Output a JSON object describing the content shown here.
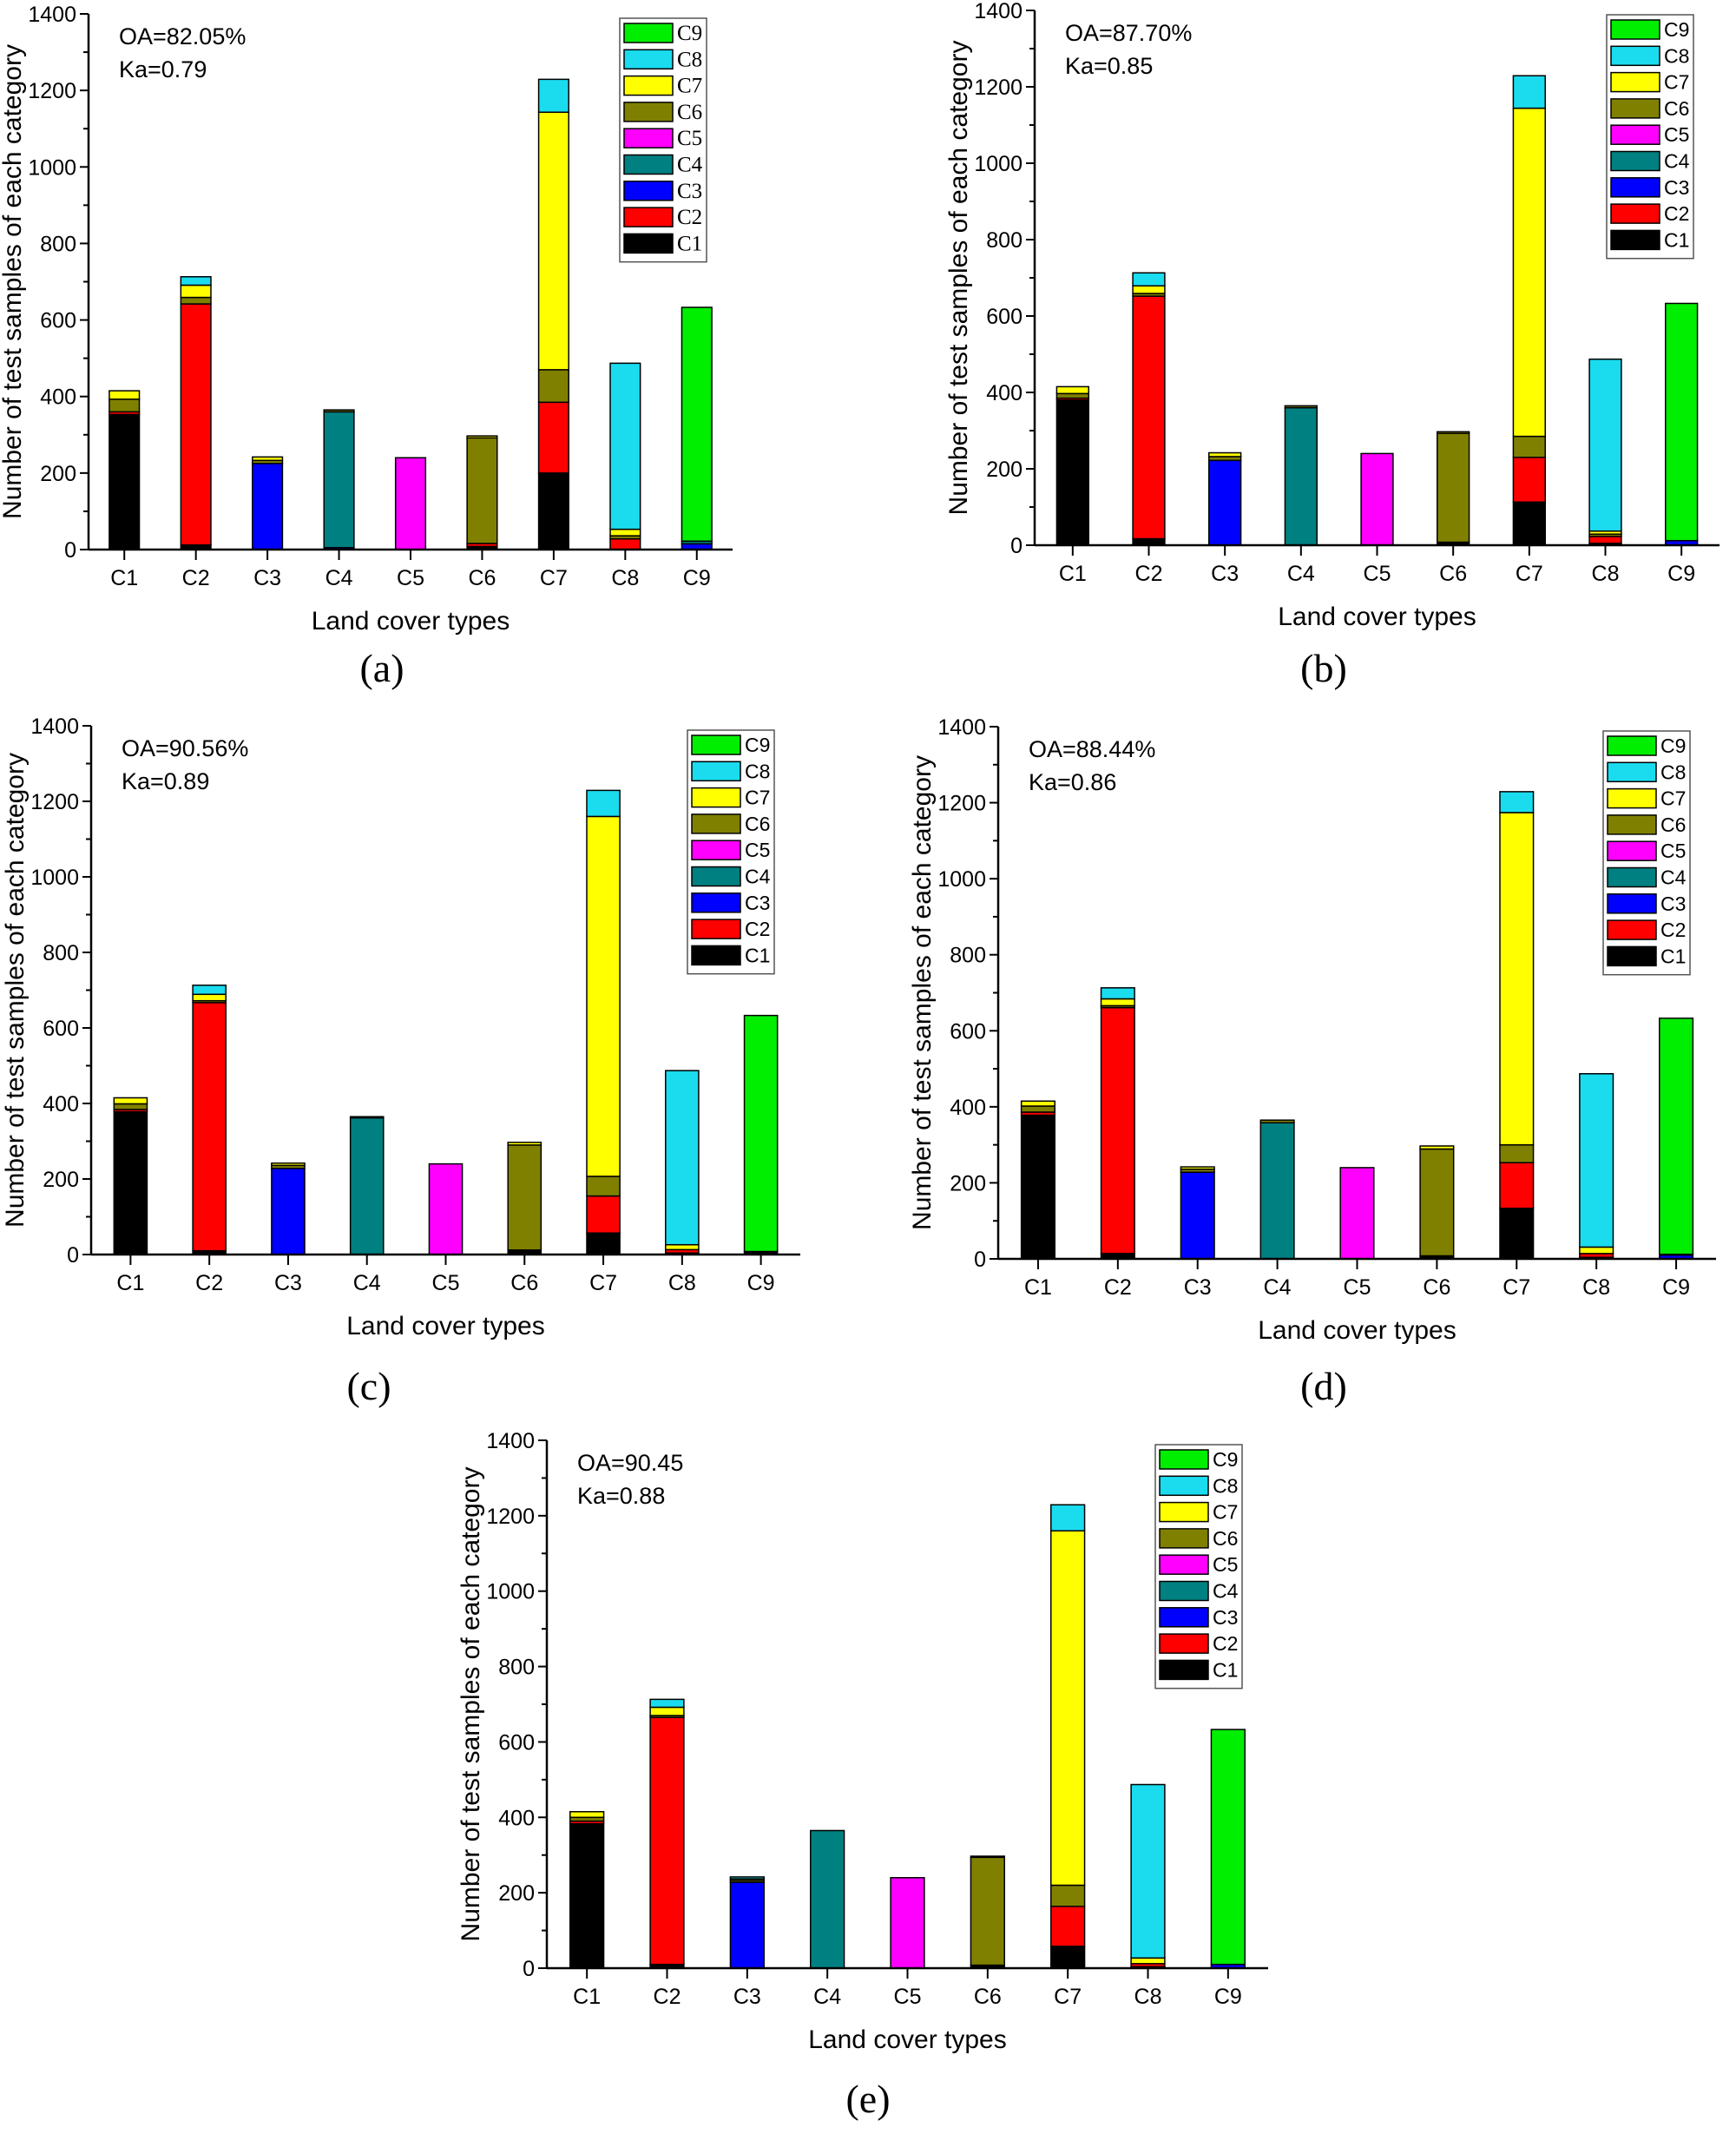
{
  "colors": {
    "C1": "#000000",
    "C2": "#ff0000",
    "C3": "#0000ff",
    "C4": "#008080",
    "C5": "#ff00ff",
    "C6": "#808000",
    "C7": "#ffff00",
    "C8": "#1adcee",
    "C9": "#00ee00"
  },
  "chart_data": [
    {
      "panel": "(a)",
      "type": "bar",
      "stacked": true,
      "annotations": [
        "OA=82.05%",
        "Ka=0.79"
      ],
      "xlabel": "Land cover types",
      "ylabel": "Number of test samples of each category",
      "ylim": [
        0,
        1400
      ],
      "yticks": [
        "0",
        "200",
        "400",
        "600",
        "800",
        "1000",
        "1200",
        "1400"
      ],
      "categories": [
        "C1",
        "C2",
        "C3",
        "C4",
        "C5",
        "C6",
        "C7",
        "C8",
        "C9"
      ],
      "legend": "top-right",
      "series": [
        {
          "name": "C1",
          "values": [
            353,
            12,
            0,
            0,
            0,
            8,
            200,
            0,
            0
          ]
        },
        {
          "name": "C2",
          "values": [
            7,
            630,
            0,
            0,
            0,
            8,
            185,
            28,
            0
          ]
        },
        {
          "name": "C3",
          "values": [
            0,
            0,
            225,
            5,
            0,
            0,
            0,
            0,
            15
          ]
        },
        {
          "name": "C4",
          "values": [
            0,
            0,
            0,
            355,
            0,
            0,
            0,
            0,
            7
          ]
        },
        {
          "name": "C5",
          "values": [
            0,
            0,
            0,
            0,
            240,
            0,
            0,
            0,
            0
          ]
        },
        {
          "name": "C6",
          "values": [
            33,
            17,
            8,
            5,
            0,
            276,
            85,
            8,
            0
          ]
        },
        {
          "name": "C7",
          "values": [
            22,
            32,
            9,
            0,
            0,
            5,
            673,
            17,
            0
          ]
        },
        {
          "name": "C8",
          "values": [
            0,
            22,
            0,
            0,
            0,
            0,
            86,
            434,
            0
          ]
        },
        {
          "name": "C9",
          "values": [
            0,
            0,
            0,
            0,
            0,
            0,
            0,
            0,
            611
          ]
        }
      ]
    },
    {
      "panel": "(b)",
      "type": "bar",
      "stacked": true,
      "annotations": [
        "OA=87.70%",
        "Ka=0.85"
      ],
      "xlabel": "Land cover types",
      "ylabel": "Number of test samples of each category",
      "ylim": [
        0,
        1400
      ],
      "yticks": [
        "0",
        "200",
        "400",
        "600",
        "800",
        "1000",
        "1200",
        "1400"
      ],
      "categories": [
        "C1",
        "C2",
        "C3",
        "C4",
        "C5",
        "C6",
        "C7",
        "C8",
        "C9"
      ],
      "legend": "top-right",
      "series": [
        {
          "name": "C1",
          "values": [
            380,
            17,
            0,
            0,
            0,
            8,
            113,
            5,
            0
          ]
        },
        {
          "name": "C2",
          "values": [
            5,
            635,
            0,
            0,
            0,
            0,
            117,
            18,
            0
          ]
        },
        {
          "name": "C3",
          "values": [
            0,
            0,
            222,
            0,
            0,
            0,
            0,
            0,
            12
          ]
        },
        {
          "name": "C4",
          "values": [
            0,
            0,
            0,
            360,
            0,
            0,
            0,
            0,
            0
          ]
        },
        {
          "name": "C5",
          "values": [
            0,
            0,
            0,
            0,
            240,
            0,
            0,
            0,
            0
          ]
        },
        {
          "name": "C6",
          "values": [
            12,
            7,
            10,
            5,
            0,
            285,
            55,
            6,
            0
          ]
        },
        {
          "name": "C7",
          "values": [
            18,
            20,
            10,
            0,
            0,
            4,
            859,
            8,
            0
          ]
        },
        {
          "name": "C8",
          "values": [
            0,
            34,
            0,
            0,
            0,
            0,
            85,
            450,
            0
          ]
        },
        {
          "name": "C9",
          "values": [
            0,
            0,
            0,
            0,
            0,
            0,
            0,
            0,
            621
          ]
        }
      ]
    },
    {
      "panel": "(c)",
      "type": "bar",
      "stacked": true,
      "annotations": [
        "OA=90.56%",
        "Ka=0.89"
      ],
      "xlabel": "Land cover types",
      "ylabel": "Number of test samples of each category",
      "ylim": [
        0,
        1400
      ],
      "yticks": [
        "0",
        "200",
        "400",
        "600",
        "800",
        "1000",
        "1200",
        "1400"
      ],
      "categories": [
        "C1",
        "C2",
        "C3",
        "C4",
        "C5",
        "C6",
        "C7",
        "C8",
        "C9"
      ],
      "legend": "top-right",
      "series": [
        {
          "name": "C1",
          "values": [
            378,
            10,
            0,
            0,
            0,
            12,
            57,
            4,
            8
          ]
        },
        {
          "name": "C2",
          "values": [
            6,
            657,
            0,
            0,
            0,
            0,
            98,
            9,
            0
          ]
        },
        {
          "name": "C3",
          "values": [
            0,
            0,
            228,
            0,
            0,
            0,
            0,
            0,
            0
          ]
        },
        {
          "name": "C4",
          "values": [
            0,
            0,
            0,
            362,
            0,
            0,
            0,
            0,
            0
          ]
        },
        {
          "name": "C5",
          "values": [
            0,
            0,
            0,
            0,
            240,
            0,
            0,
            0,
            0
          ]
        },
        {
          "name": "C6",
          "values": [
            15,
            5,
            8,
            3,
            0,
            278,
            52,
            0,
            0
          ]
        },
        {
          "name": "C7",
          "values": [
            16,
            17,
            6,
            0,
            0,
            7,
            953,
            13,
            0
          ]
        },
        {
          "name": "C8",
          "values": [
            0,
            24,
            0,
            0,
            0,
            0,
            69,
            461,
            0
          ]
        },
        {
          "name": "C9",
          "values": [
            0,
            0,
            0,
            0,
            0,
            0,
            0,
            0,
            625
          ]
        }
      ]
    },
    {
      "panel": "(d)",
      "type": "bar",
      "stacked": true,
      "annotations": [
        "OA=88.44%",
        "Ka=0.86"
      ],
      "xlabel": "Land cover types",
      "ylabel": "Number of test samples of each category",
      "ylim": [
        0,
        1400
      ],
      "yticks": [
        "0",
        "200",
        "400",
        "600",
        "800",
        "1000",
        "1200",
        "1400"
      ],
      "categories": [
        "C1",
        "C2",
        "C3",
        "C4",
        "C5",
        "C6",
        "C7",
        "C8",
        "C9"
      ],
      "legend": "top-right",
      "series": [
        {
          "name": "C1",
          "values": [
            378,
            14,
            0,
            0,
            0,
            8,
            133,
            4,
            0
          ]
        },
        {
          "name": "C2",
          "values": [
            8,
            647,
            0,
            0,
            0,
            0,
            120,
            10,
            0
          ]
        },
        {
          "name": "C3",
          "values": [
            0,
            0,
            228,
            0,
            0,
            0,
            0,
            0,
            10
          ]
        },
        {
          "name": "C4",
          "values": [
            0,
            0,
            0,
            358,
            0,
            0,
            0,
            0,
            2
          ]
        },
        {
          "name": "C5",
          "values": [
            0,
            0,
            0,
            0,
            240,
            0,
            0,
            0,
            0
          ]
        },
        {
          "name": "C6",
          "values": [
            16,
            5,
            8,
            7,
            0,
            281,
            47,
            0,
            0
          ]
        },
        {
          "name": "C7",
          "values": [
            13,
            18,
            6,
            0,
            0,
            8,
            874,
            17,
            0
          ]
        },
        {
          "name": "C8",
          "values": [
            0,
            29,
            0,
            0,
            0,
            0,
            55,
            456,
            0
          ]
        },
        {
          "name": "C9",
          "values": [
            0,
            0,
            0,
            0,
            0,
            0,
            0,
            0,
            621
          ]
        }
      ]
    },
    {
      "panel": "(e)",
      "type": "bar",
      "stacked": true,
      "annotations": [
        "OA=90.45",
        "Ka=0.88"
      ],
      "xlabel": "Land cover types",
      "ylabel": "Number of test samples of each category",
      "ylim": [
        0,
        1400
      ],
      "yticks": [
        "0",
        "200",
        "400",
        "600",
        "800",
        "1000",
        "1200",
        "1400"
      ],
      "categories": [
        "C1",
        "C2",
        "C3",
        "C4",
        "C5",
        "C6",
        "C7",
        "C8",
        "C9"
      ],
      "legend": "top-right",
      "series": [
        {
          "name": "C1",
          "values": [
            383,
            10,
            0,
            0,
            0,
            8,
            58,
            4,
            0
          ]
        },
        {
          "name": "C2",
          "values": [
            7,
            655,
            0,
            0,
            0,
            0,
            106,
            8,
            0
          ]
        },
        {
          "name": "C3",
          "values": [
            0,
            0,
            228,
            0,
            0,
            0,
            0,
            0,
            10
          ]
        },
        {
          "name": "C4",
          "values": [
            0,
            0,
            0,
            365,
            0,
            0,
            0,
            0,
            0
          ]
        },
        {
          "name": "C5",
          "values": [
            0,
            0,
            0,
            0,
            240,
            0,
            0,
            0,
            0
          ]
        },
        {
          "name": "C6",
          "values": [
            10,
            5,
            5,
            0,
            0,
            286,
            56,
            0,
            0
          ]
        },
        {
          "name": "C7",
          "values": [
            15,
            22,
            4,
            0,
            0,
            3,
            940,
            15,
            0
          ]
        },
        {
          "name": "C8",
          "values": [
            0,
            21,
            5,
            0,
            0,
            0,
            69,
            460,
            0
          ]
        },
        {
          "name": "C9",
          "values": [
            0,
            0,
            0,
            0,
            0,
            0,
            0,
            0,
            623
          ]
        }
      ]
    }
  ]
}
